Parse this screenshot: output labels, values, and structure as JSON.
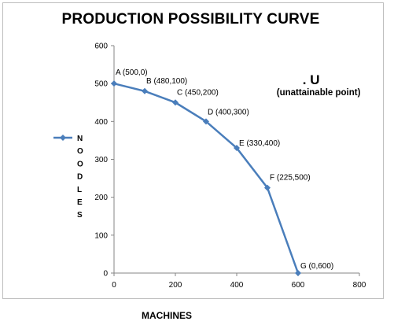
{
  "chart_data": {
    "type": "line",
    "title": "PRODUCTION POSSIBILITY CURVE",
    "xlabel": "MACHINES",
    "ylabel": "",
    "legend": {
      "entries": [
        "NOODLES"
      ],
      "placement": "left"
    },
    "xlim": [
      0,
      800
    ],
    "ylim": [
      0,
      600
    ],
    "xticks": [
      "0",
      "200",
      "400",
      "600",
      "800"
    ],
    "yticks": [
      "0",
      "100",
      "200",
      "300",
      "400",
      "500",
      "600"
    ],
    "grid": false,
    "series": [
      {
        "name": "NOODLES",
        "color": "#4a7ebb",
        "x": [
          0,
          100,
          200,
          300,
          400,
          500,
          600
        ],
        "y": [
          500,
          480,
          450,
          400,
          330,
          225,
          0
        ]
      }
    ],
    "data_labels": [
      "A (500,0)",
      "B (480,100)",
      "C (450,200)",
      "D (400,300)",
      "E (330,400)",
      "F (225,500)",
      "G (0,600)"
    ],
    "annotations": [
      {
        "text": ". U",
        "x": 625,
        "y": 515
      },
      {
        "text": "(unattainable point)",
        "x": 625,
        "y": 477
      }
    ]
  }
}
